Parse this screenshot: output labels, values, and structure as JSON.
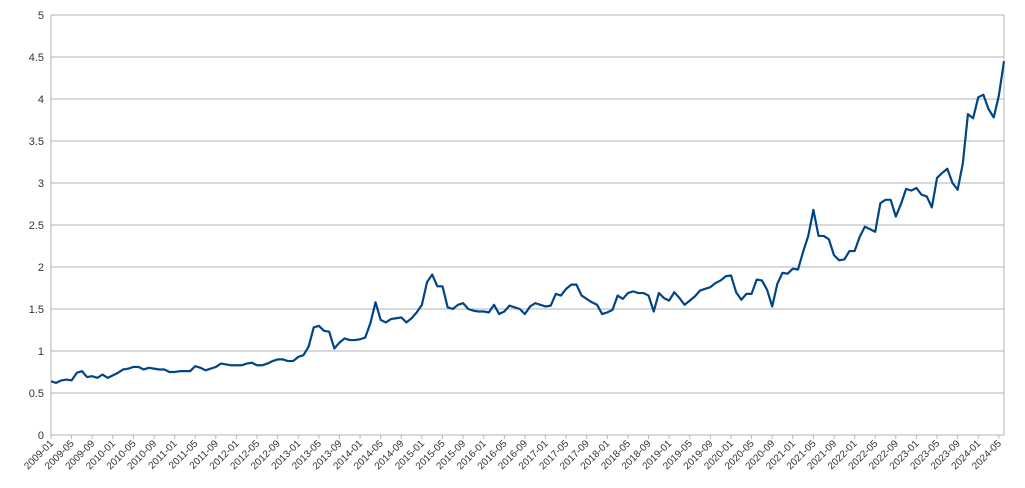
{
  "chart_data": {
    "type": "line",
    "title": "",
    "xlabel": "",
    "ylabel": "",
    "ylim": [
      0,
      5
    ],
    "yticks": [
      "0",
      "0.5",
      "1",
      "1.5",
      "2",
      "2.5",
      "3",
      "3.5",
      "4",
      "4.5",
      "5"
    ],
    "grid": true,
    "legend": "none",
    "line_color": "#004586",
    "x_start": "2009-01",
    "x_tick_labels": [
      "2009-01",
      "2009-05",
      "2009-09",
      "2010-01",
      "2010-05",
      "2010-09",
      "2011-01",
      "2011-05",
      "2011-09",
      "2012-01",
      "2012-05",
      "2012-09",
      "2013-01",
      "2013-05",
      "2013-09",
      "2014-01",
      "2014-05",
      "2014-09",
      "2015-01",
      "2015-05",
      "2015-09",
      "2016-01",
      "2016-05",
      "2016-09",
      "2017-01",
      "2017-05",
      "2017-09",
      "2018-01",
      "2018-05",
      "2018-09",
      "2019-01",
      "2019-05",
      "2019-09",
      "2020-01",
      "2020-05",
      "2020-09",
      "2021-01",
      "2021-05",
      "2021-09",
      "2022-01",
      "2022-05",
      "2022-09",
      "2023-01",
      "2023-05",
      "2023-09",
      "2024-01",
      "2024-05"
    ],
    "series": [
      {
        "values": [
          0.64,
          0.62,
          0.65,
          0.66,
          0.65,
          0.74,
          0.76,
          0.69,
          0.7,
          0.68,
          0.72,
          0.68,
          0.71,
          0.74,
          0.78,
          0.79,
          0.81,
          0.81,
          0.78,
          0.8,
          0.79,
          0.78,
          0.78,
          0.75,
          0.75,
          0.76,
          0.76,
          0.76,
          0.82,
          0.8,
          0.77,
          0.79,
          0.81,
          0.85,
          0.84,
          0.83,
          0.83,
          0.83,
          0.85,
          0.86,
          0.83,
          0.83,
          0.85,
          0.88,
          0.9,
          0.9,
          0.88,
          0.88,
          0.93,
          0.95,
          1.05,
          1.28,
          1.3,
          1.24,
          1.23,
          1.03,
          1.1,
          1.15,
          1.13,
          1.13,
          1.14,
          1.16,
          1.33,
          1.58,
          1.37,
          1.34,
          1.38,
          1.39,
          1.4,
          1.34,
          1.39,
          1.46,
          1.55,
          1.82,
          1.91,
          1.77,
          1.77,
          1.52,
          1.5,
          1.55,
          1.57,
          1.5,
          1.48,
          1.47,
          1.47,
          1.46,
          1.55,
          1.44,
          1.47,
          1.54,
          1.52,
          1.5,
          1.44,
          1.53,
          1.57,
          1.55,
          1.53,
          1.54,
          1.68,
          1.66,
          1.74,
          1.79,
          1.79,
          1.66,
          1.62,
          1.58,
          1.55,
          1.44,
          1.46,
          1.49,
          1.66,
          1.62,
          1.69,
          1.71,
          1.69,
          1.69,
          1.66,
          1.47,
          1.69,
          1.63,
          1.6,
          1.7,
          1.63,
          1.55,
          1.6,
          1.65,
          1.72,
          1.74,
          1.76,
          1.81,
          1.84,
          1.89,
          1.9,
          1.7,
          1.61,
          1.68,
          1.68,
          1.85,
          1.84,
          1.73,
          1.53,
          1.8,
          1.93,
          1.92,
          1.98,
          1.97,
          2.18,
          2.37,
          2.68,
          2.37,
          2.37,
          2.33,
          2.14,
          2.08,
          2.09,
          2.19,
          2.19,
          2.36,
          2.48,
          2.45,
          2.42,
          2.76,
          2.8,
          2.8,
          2.6,
          2.75,
          2.93,
          2.91,
          2.94,
          2.86,
          2.84,
          2.71,
          3.06,
          3.12,
          3.17,
          3.0,
          2.92,
          3.23,
          3.82,
          3.77,
          4.02,
          4.05,
          3.88,
          3.78,
          4.04,
          4.45
        ]
      }
    ]
  }
}
